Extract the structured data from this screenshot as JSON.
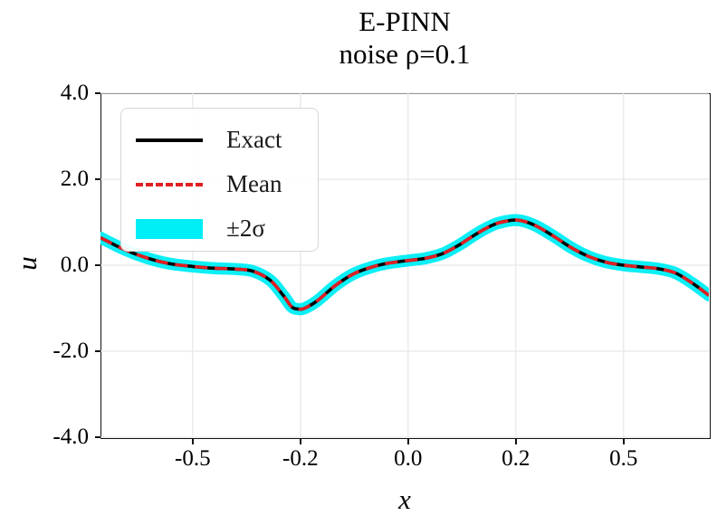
{
  "chart_data": {
    "type": "line",
    "title": "E-PINN",
    "subtitle": "noise ρ=0.1",
    "xlabel": "x",
    "ylabel": "u",
    "xlim": [
      -0.714,
      0.698
    ],
    "ylim": [
      -4.0,
      4.0
    ],
    "grid": true,
    "x_ticks": {
      "values": [
        -0.5,
        -0.25,
        0.0,
        0.25,
        0.5
      ],
      "labels": [
        "-0.5",
        "-0.2",
        "0.0",
        "0.2",
        "0.5"
      ]
    },
    "y_ticks": {
      "values": [
        4.0,
        2.0,
        0.0,
        -2.0,
        -4.0
      ],
      "labels": [
        "4.0",
        "2.0",
        "0.0",
        "-2.0",
        "-4.0"
      ]
    },
    "legend": {
      "position": "upper-left",
      "entries": [
        {
          "label": "Exact",
          "style": "solid-line",
          "color": "#000000"
        },
        {
          "label": "Mean",
          "style": "dashed-line",
          "color": "#e01f23"
        },
        {
          "label": "±2σ",
          "style": "filled-band",
          "color": "#00eef5"
        }
      ]
    },
    "colors": {
      "exact_line": "#000000",
      "mean_line": "#e01f23",
      "band": "#00eef5",
      "gridline": "#e7e7e7",
      "spine": "#111111"
    },
    "band_halfwidth_u": 0.14,
    "series": [
      {
        "name": "Exact",
        "points": [
          [
            -0.714,
            0.64
          ],
          [
            -0.67,
            0.42
          ],
          [
            -0.63,
            0.25
          ],
          [
            -0.59,
            0.12
          ],
          [
            -0.55,
            0.03
          ],
          [
            -0.5,
            -0.03
          ],
          [
            -0.45,
            -0.07
          ],
          [
            -0.4,
            -0.09
          ],
          [
            -0.36,
            -0.14
          ],
          [
            -0.32,
            -0.35
          ],
          [
            -0.29,
            -0.7
          ],
          [
            -0.27,
            -0.97
          ],
          [
            -0.255,
            -1.02
          ],
          [
            -0.24,
            -1.0
          ],
          [
            -0.21,
            -0.82
          ],
          [
            -0.17,
            -0.48
          ],
          [
            -0.13,
            -0.22
          ],
          [
            -0.09,
            -0.06
          ],
          [
            -0.05,
            0.04
          ],
          [
            0.0,
            0.11
          ],
          [
            0.04,
            0.16
          ],
          [
            0.08,
            0.27
          ],
          [
            0.12,
            0.48
          ],
          [
            0.16,
            0.74
          ],
          [
            0.2,
            0.95
          ],
          [
            0.23,
            1.03
          ],
          [
            0.25,
            1.05
          ],
          [
            0.27,
            1.02
          ],
          [
            0.3,
            0.9
          ],
          [
            0.34,
            0.66
          ],
          [
            0.38,
            0.4
          ],
          [
            0.42,
            0.2
          ],
          [
            0.46,
            0.07
          ],
          [
            0.5,
            0.0
          ],
          [
            0.54,
            -0.04
          ],
          [
            0.58,
            -0.08
          ],
          [
            0.62,
            -0.18
          ],
          [
            0.66,
            -0.42
          ],
          [
            0.698,
            -0.7
          ]
        ]
      },
      {
        "name": "Mean",
        "same_as": "Exact"
      }
    ]
  }
}
